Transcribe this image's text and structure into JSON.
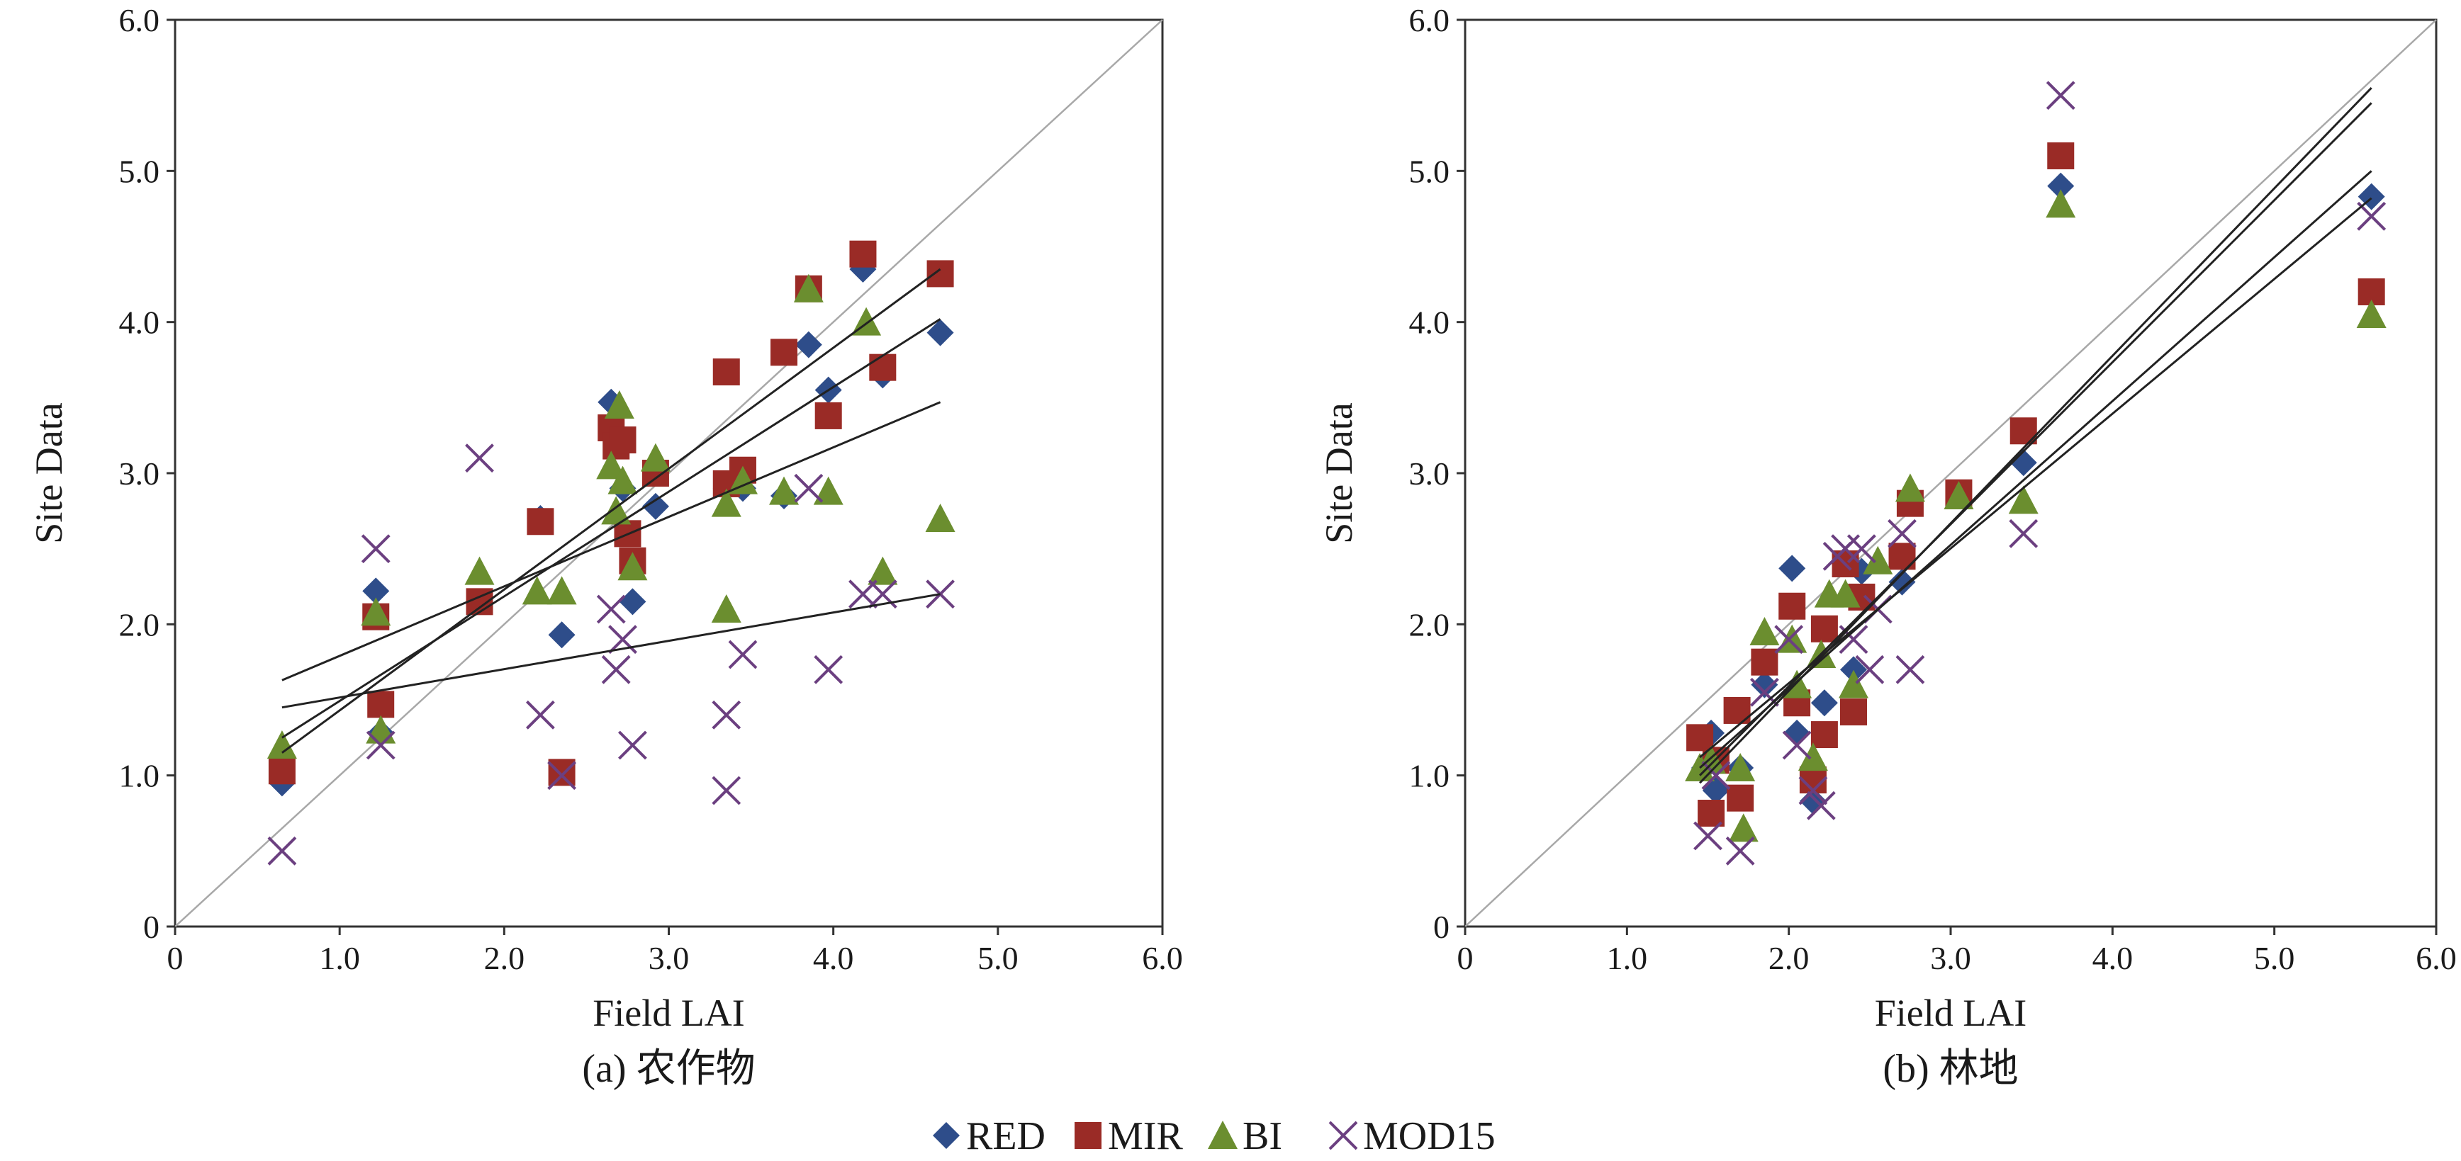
{
  "colors": {
    "RED": "#2e4d8a",
    "MIR": "#9a2b26",
    "BI": "#6b8e2f",
    "MOD15": "#6b3f80",
    "axis": "#333333",
    "fit": "#222222",
    "one_to_one": "#a8a8a8"
  },
  "legend": [
    {
      "key": "RED",
      "label": "RED",
      "marker": "diamond"
    },
    {
      "key": "MIR",
      "label": "MIR",
      "marker": "square"
    },
    {
      "key": "BI",
      "label": "BI",
      "marker": "triangle"
    },
    {
      "key": "MOD15",
      "label": "MOD15",
      "marker": "x"
    }
  ],
  "chart_data": [
    {
      "type": "scatter",
      "caption": "(a) 农作物",
      "xlabel": "Field LAI",
      "ylabel": "Site Data",
      "xlim": [
        0,
        6
      ],
      "ylim": [
        0,
        6
      ],
      "x_ticks": [
        "0",
        "1.0",
        "2.0",
        "3.0",
        "4.0",
        "5.0",
        "6.0"
      ],
      "y_ticks": [
        "0",
        "1.0",
        "2.0",
        "3.0",
        "4.0",
        "5.0",
        "6.0"
      ],
      "one_to_one_line": true,
      "series": [
        {
          "key": "RED",
          "points": [
            [
              0.65,
              0.95
            ],
            [
              1.22,
              2.22
            ],
            [
              1.25,
              1.28
            ],
            [
              2.22,
              2.7
            ],
            [
              2.35,
              1.93
            ],
            [
              2.65,
              3.47
            ],
            [
              2.72,
              2.9
            ],
            [
              2.78,
              2.15
            ],
            [
              2.92,
              2.78
            ],
            [
              3.35,
              2.9
            ],
            [
              3.45,
              2.9
            ],
            [
              3.7,
              2.85
            ],
            [
              3.85,
              3.85
            ],
            [
              3.97,
              3.55
            ],
            [
              4.18,
              4.35
            ],
            [
              4.3,
              3.65
            ],
            [
              4.65,
              3.93
            ]
          ]
        },
        {
          "key": "MIR",
          "points": [
            [
              0.65,
              1.03
            ],
            [
              1.22,
              2.05
            ],
            [
              1.25,
              1.47
            ],
            [
              1.85,
              2.15
            ],
            [
              2.22,
              2.68
            ],
            [
              2.35,
              1.02
            ],
            [
              2.65,
              3.3
            ],
            [
              2.68,
              3.18
            ],
            [
              2.72,
              3.22
            ],
            [
              2.75,
              2.6
            ],
            [
              2.78,
              2.42
            ],
            [
              2.92,
              3.0
            ],
            [
              3.35,
              2.93
            ],
            [
              3.35,
              3.67
            ],
            [
              3.45,
              3.02
            ],
            [
              3.7,
              3.8
            ],
            [
              3.85,
              4.22
            ],
            [
              3.97,
              3.38
            ],
            [
              4.18,
              4.45
            ],
            [
              4.3,
              3.7
            ],
            [
              4.65,
              4.32
            ]
          ]
        },
        {
          "key": "BI",
          "points": [
            [
              0.65,
              1.2
            ],
            [
              1.22,
              2.08
            ],
            [
              1.25,
              1.3
            ],
            [
              1.85,
              2.35
            ],
            [
              2.2,
              2.22
            ],
            [
              2.35,
              2.22
            ],
            [
              2.65,
              3.05
            ],
            [
              2.68,
              2.75
            ],
            [
              2.7,
              3.45
            ],
            [
              2.72,
              2.95
            ],
            [
              2.78,
              2.38
            ],
            [
              2.92,
              3.1
            ],
            [
              3.35,
              2.1
            ],
            [
              3.35,
              2.8
            ],
            [
              3.45,
              2.95
            ],
            [
              3.7,
              2.88
            ],
            [
              3.85,
              4.22
            ],
            [
              3.97,
              2.88
            ],
            [
              4.2,
              4.0
            ],
            [
              4.3,
              2.35
            ],
            [
              4.65,
              2.7
            ]
          ]
        },
        {
          "key": "MOD15",
          "points": [
            [
              0.65,
              0.5
            ],
            [
              1.22,
              2.5
            ],
            [
              1.25,
              1.2
            ],
            [
              1.85,
              3.1
            ],
            [
              2.22,
              1.4
            ],
            [
              2.35,
              1.0
            ],
            [
              2.65,
              2.1
            ],
            [
              2.68,
              1.7
            ],
            [
              2.72,
              1.9
            ],
            [
              2.78,
              1.2
            ],
            [
              3.35,
              0.9
            ],
            [
              3.35,
              1.4
            ],
            [
              3.45,
              1.8
            ],
            [
              3.85,
              2.9
            ],
            [
              3.97,
              1.7
            ],
            [
              4.18,
              2.2
            ],
            [
              4.3,
              2.2
            ],
            [
              4.65,
              2.2
            ]
          ]
        }
      ],
      "fit_lines": [
        {
          "x": [
            0.65,
            4.65
          ],
          "y": [
            1.15,
            4.35
          ]
        },
        {
          "x": [
            0.65,
            4.65
          ],
          "y": [
            1.25,
            4.02
          ]
        },
        {
          "x": [
            0.65,
            4.65
          ],
          "y": [
            1.63,
            3.47
          ]
        },
        {
          "x": [
            0.65,
            4.65
          ],
          "y": [
            1.45,
            2.2
          ]
        }
      ]
    },
    {
      "type": "scatter",
      "caption": "(b) 林地",
      "xlabel": "Field LAI",
      "ylabel": "Site Data",
      "xlim": [
        0,
        6
      ],
      "ylim": [
        0,
        6
      ],
      "x_ticks": [
        "0",
        "1.0",
        "2.0",
        "3.0",
        "4.0",
        "5.0",
        "6.0"
      ],
      "y_ticks": [
        "0",
        "1.0",
        "2.0",
        "3.0",
        "4.0",
        "5.0",
        "6.0"
      ],
      "one_to_one_line": true,
      "series": [
        {
          "key": "RED",
          "points": [
            [
              1.48,
              1.05
            ],
            [
              1.52,
              1.28
            ],
            [
              1.55,
              0.9
            ],
            [
              1.7,
              1.05
            ],
            [
              1.85,
              1.6
            ],
            [
              2.02,
              2.37
            ],
            [
              2.05,
              1.28
            ],
            [
              2.15,
              0.83
            ],
            [
              2.22,
              1.48
            ],
            [
              2.35,
              2.4
            ],
            [
              2.4,
              1.7
            ],
            [
              2.45,
              2.35
            ],
            [
              2.7,
              2.28
            ],
            [
              3.45,
              3.07
            ],
            [
              3.68,
              4.9
            ],
            [
              5.6,
              4.83
            ]
          ]
        },
        {
          "key": "MIR",
          "points": [
            [
              1.45,
              1.25
            ],
            [
              1.52,
              0.75
            ],
            [
              1.55,
              1.1
            ],
            [
              1.68,
              1.43
            ],
            [
              1.7,
              0.85
            ],
            [
              1.85,
              1.75
            ],
            [
              2.02,
              2.12
            ],
            [
              2.05,
              1.48
            ],
            [
              2.15,
              0.97
            ],
            [
              2.22,
              1.27
            ],
            [
              2.22,
              1.97
            ],
            [
              2.35,
              2.4
            ],
            [
              2.4,
              1.42
            ],
            [
              2.45,
              2.18
            ],
            [
              2.7,
              2.45
            ],
            [
              2.75,
              2.8
            ],
            [
              3.05,
              2.87
            ],
            [
              3.45,
              3.28
            ],
            [
              3.68,
              5.1
            ],
            [
              5.6,
              4.2
            ]
          ]
        },
        {
          "key": "BI",
          "points": [
            [
              1.45,
              1.05
            ],
            [
              1.52,
              1.1
            ],
            [
              1.7,
              1.05
            ],
            [
              1.72,
              0.65
            ],
            [
              1.85,
              1.95
            ],
            [
              2.02,
              1.9
            ],
            [
              2.05,
              1.6
            ],
            [
              2.15,
              1.12
            ],
            [
              2.2,
              1.8
            ],
            [
              2.25,
              2.2
            ],
            [
              2.35,
              2.2
            ],
            [
              2.4,
              1.6
            ],
            [
              2.55,
              2.42
            ],
            [
              2.75,
              2.9
            ],
            [
              3.05,
              2.85
            ],
            [
              3.45,
              2.82
            ],
            [
              3.68,
              4.78
            ],
            [
              5.6,
              4.05
            ]
          ]
        },
        {
          "key": "MOD15",
          "points": [
            [
              1.5,
              0.6
            ],
            [
              1.55,
              1.0
            ],
            [
              1.7,
              0.5
            ],
            [
              1.85,
              1.55
            ],
            [
              2.0,
              1.9
            ],
            [
              2.05,
              1.2
            ],
            [
              2.15,
              0.9
            ],
            [
              2.2,
              0.8
            ],
            [
              2.3,
              2.45
            ],
            [
              2.35,
              2.5
            ],
            [
              2.4,
              1.9
            ],
            [
              2.45,
              2.5
            ],
            [
              2.5,
              1.7
            ],
            [
              2.55,
              2.1
            ],
            [
              2.7,
              2.6
            ],
            [
              2.75,
              1.7
            ],
            [
              3.45,
              2.6
            ],
            [
              3.68,
              5.5
            ],
            [
              5.6,
              4.7
            ]
          ]
        }
      ],
      "fit_lines": [
        {
          "x": [
            1.45,
            5.6
          ],
          "y": [
            0.95,
            5.55
          ]
        },
        {
          "x": [
            1.45,
            5.6
          ],
          "y": [
            1.0,
            5.45
          ]
        },
        {
          "x": [
            1.45,
            5.6
          ],
          "y": [
            1.05,
            5.0
          ]
        },
        {
          "x": [
            1.45,
            5.6
          ],
          "y": [
            1.12,
            4.82
          ]
        }
      ]
    }
  ]
}
